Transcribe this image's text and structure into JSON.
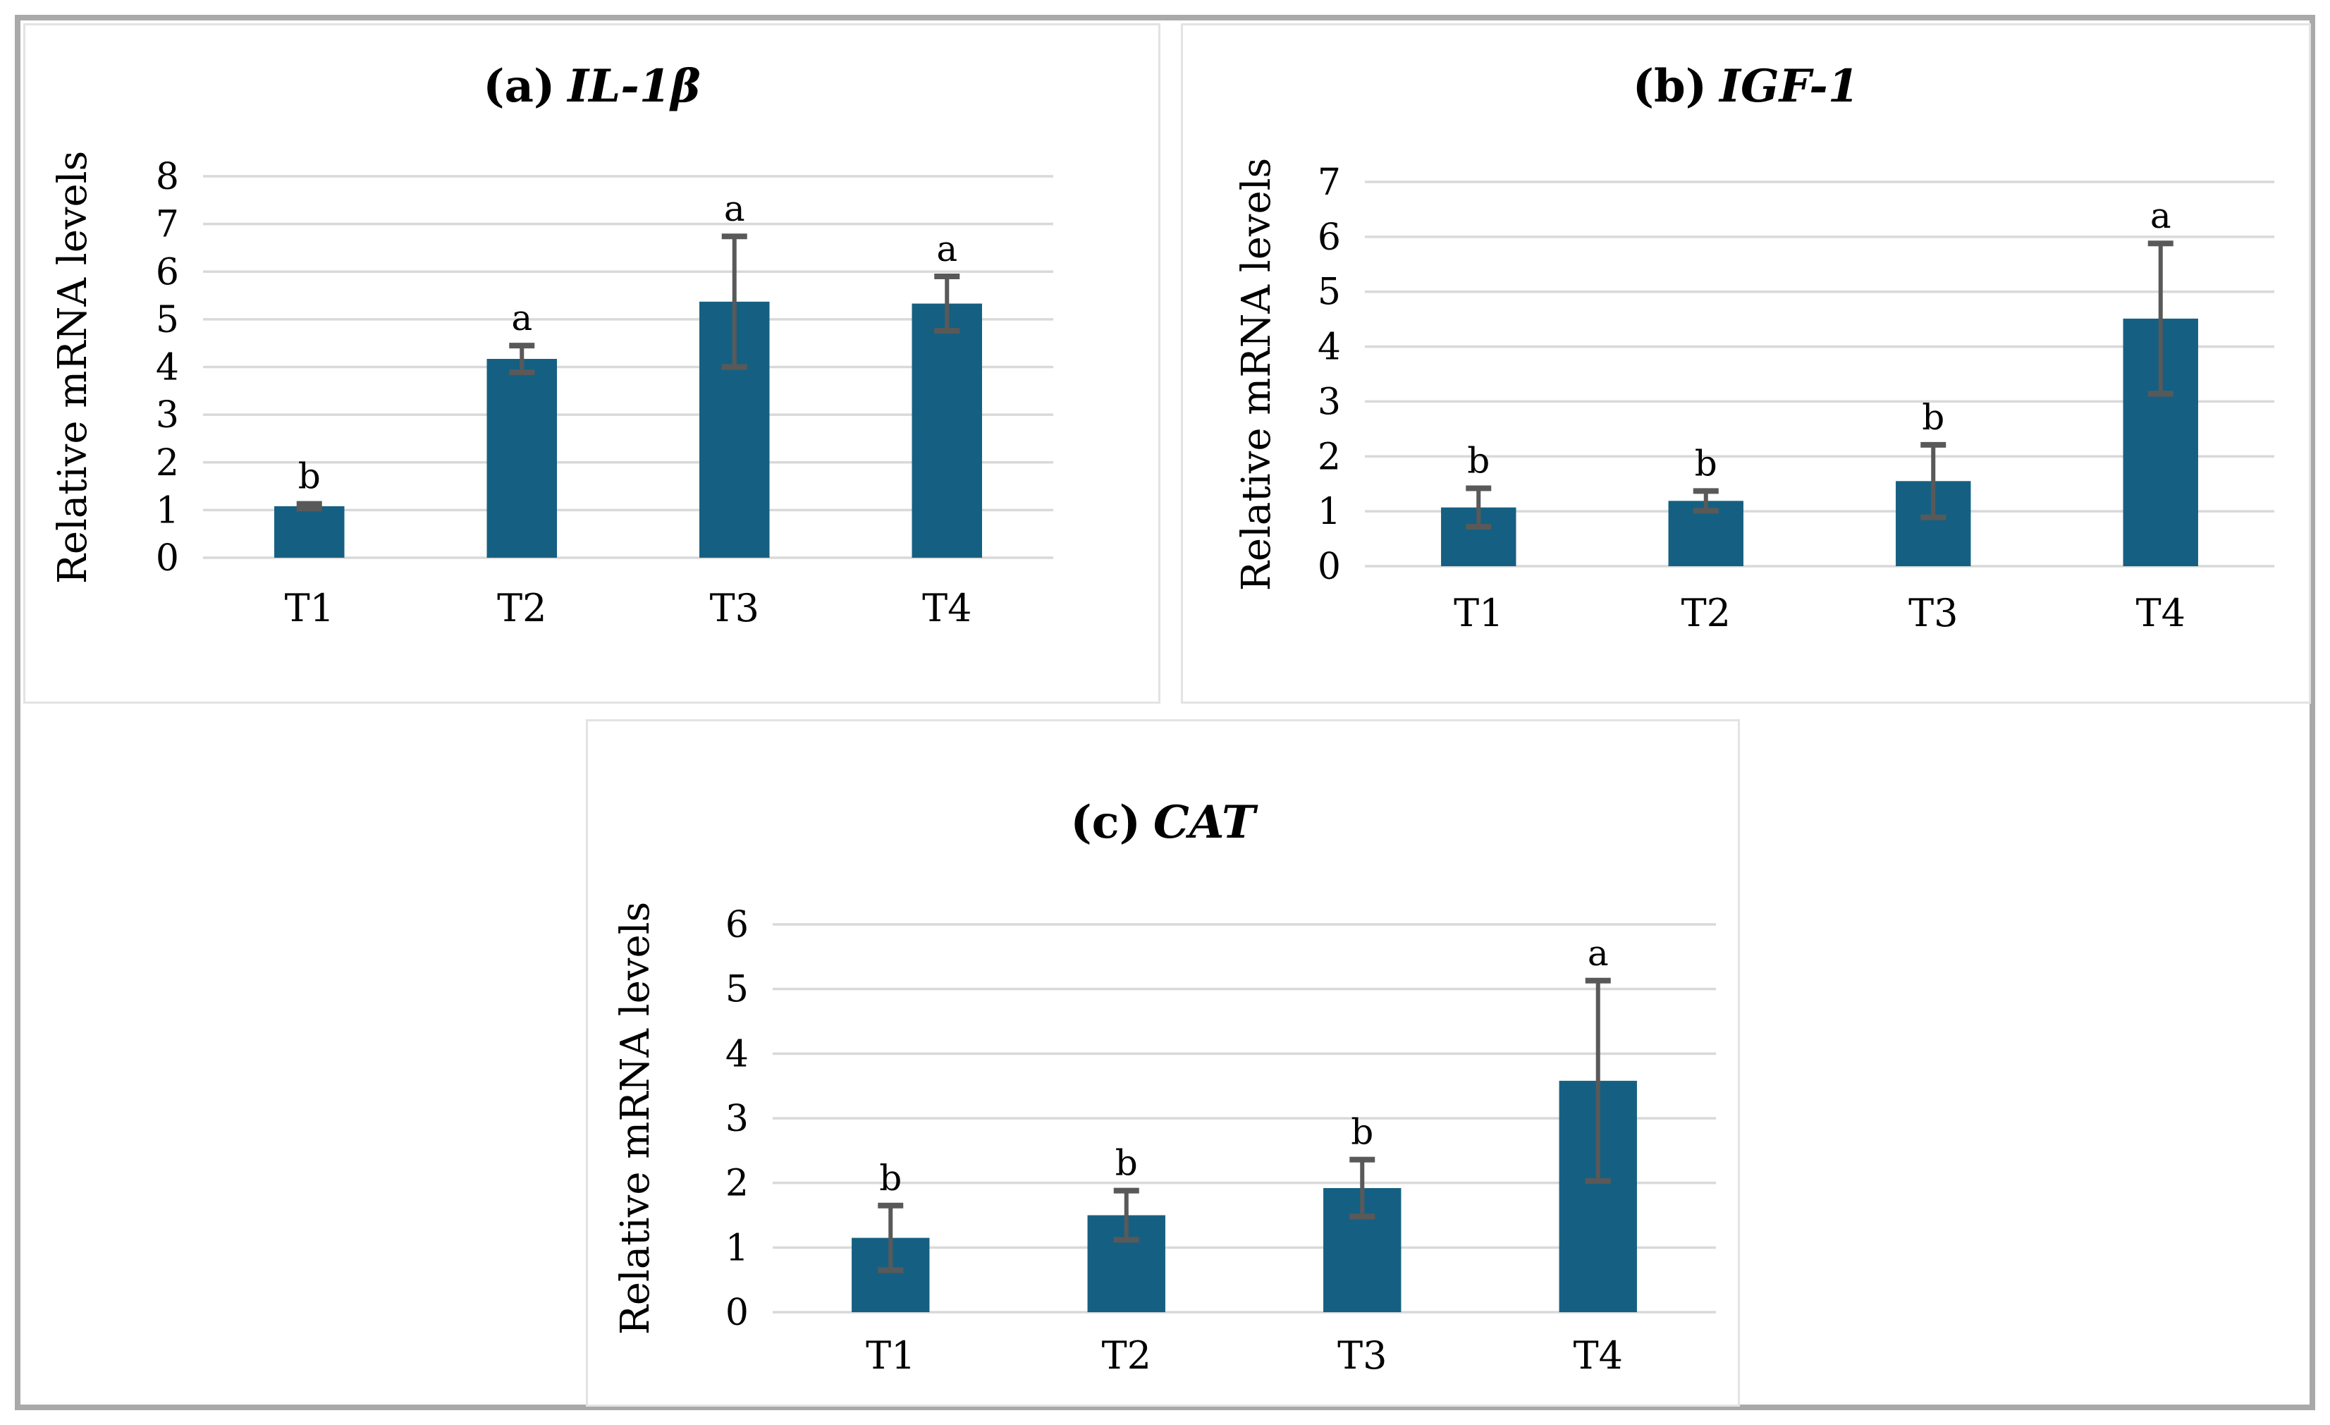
{
  "figure": {
    "outer_border_color": "#a9a9a9",
    "panel_border_color": "#e3e3e3",
    "background_color": "#ffffff"
  },
  "chart_data": [
    {
      "type": "bar",
      "panel": "a",
      "title_prefix": "(a)",
      "title_gene": "IL-1β",
      "ylabel": "Relative mRNA levels",
      "categories": [
        "T1",
        "T2",
        "T3",
        "T4"
      ],
      "values": [
        1.08,
        4.17,
        5.37,
        5.33
      ],
      "errors": [
        0.05,
        0.28,
        1.37,
        0.57
      ],
      "sig_letters": [
        "b",
        "a",
        "a",
        "a"
      ],
      "ylim": [
        0,
        8
      ],
      "ytick_step": 1,
      "grid": true,
      "legend": "none",
      "bar_color": "#156082",
      "error_color": "#595959",
      "grid_color": "#d9d9d9",
      "text_color": "#000000"
    },
    {
      "type": "bar",
      "panel": "b",
      "title_prefix": "(b)",
      "title_gene": "IGF-1",
      "ylabel": "Relative mRNA levels",
      "categories": [
        "T1",
        "T2",
        "T3",
        "T4"
      ],
      "values": [
        1.07,
        1.19,
        1.55,
        4.51
      ],
      "errors": [
        0.35,
        0.18,
        0.66,
        1.37
      ],
      "sig_letters": [
        "b",
        "b",
        "b",
        "a"
      ],
      "ylim": [
        0,
        7
      ],
      "ytick_step": 1,
      "grid": true,
      "legend": "none",
      "bar_color": "#156082",
      "error_color": "#595959",
      "grid_color": "#d9d9d9",
      "text_color": "#000000"
    },
    {
      "type": "bar",
      "panel": "c",
      "title_prefix": "(c)",
      "title_gene": "CAT",
      "ylabel": "Relative mRNA levels",
      "categories": [
        "T1",
        "T2",
        "T3",
        "T4"
      ],
      "values": [
        1.15,
        1.5,
        1.92,
        3.58
      ],
      "errors": [
        0.5,
        0.38,
        0.44,
        1.55
      ],
      "sig_letters": [
        "b",
        "b",
        "b",
        "a"
      ],
      "ylim": [
        0,
        6
      ],
      "ytick_step": 1,
      "grid": true,
      "legend": "none",
      "bar_color": "#156082",
      "error_color": "#595959",
      "grid_color": "#d9d9d9",
      "text_color": "#000000"
    }
  ]
}
